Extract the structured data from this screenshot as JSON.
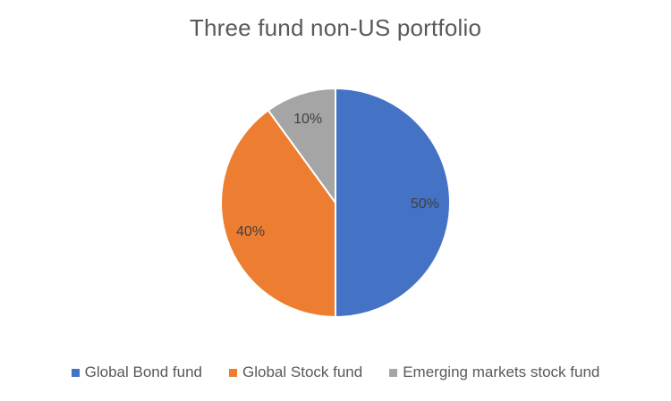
{
  "chart_data": {
    "type": "pie",
    "title": "Three fund non-US portfolio",
    "categories": [
      "Global Bond fund",
      "Global Stock fund",
      "Emerging markets stock fund"
    ],
    "values": [
      50,
      40,
      10
    ],
    "data_labels": [
      "50%",
      "40%",
      "10%"
    ],
    "colors": [
      "#4472C4",
      "#ED7D31",
      "#A5A5A5"
    ],
    "start_angle": "12 o'clock",
    "direction": "clockwise",
    "legend_position": "bottom"
  }
}
